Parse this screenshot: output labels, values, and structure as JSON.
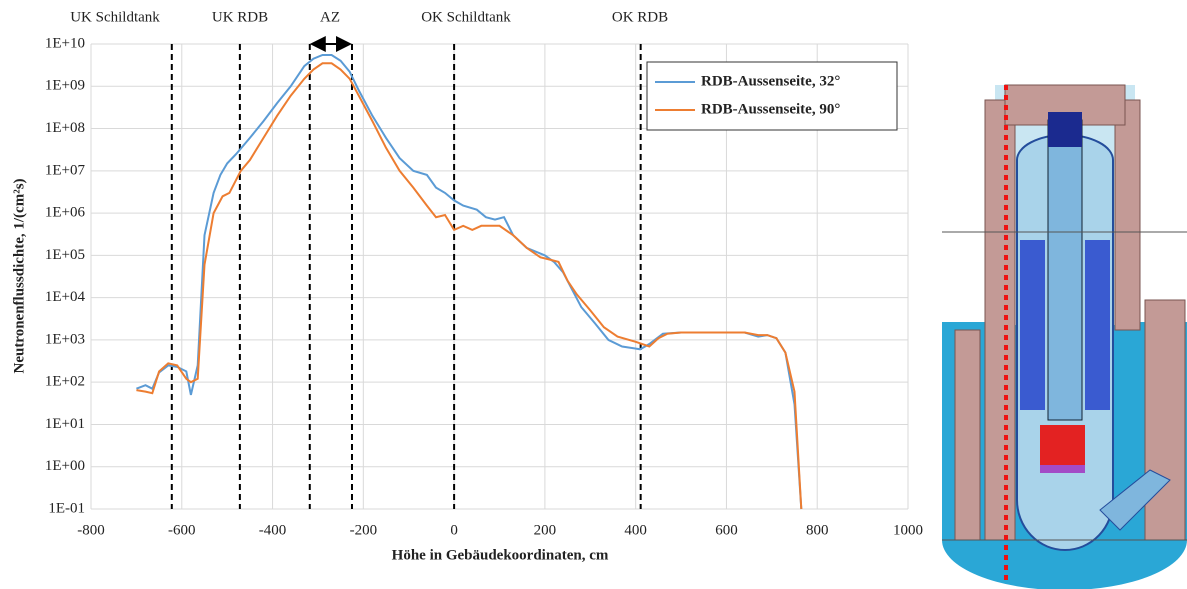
{
  "chart_data": {
    "type": "line",
    "annotations": [
      "UK Schildtank",
      "UK RDB",
      "AZ",
      "OK Schildtank",
      "OK RDB"
    ],
    "markers": [
      -622,
      -472,
      -318,
      -225,
      0,
      411
    ],
    "ylabel": "Neutronenflussdichte, 1/(cm²s)",
    "xlabel": "Höhe in Gebäudekoordinaten, cm",
    "yscale": "log",
    "grid": true,
    "legend": "upper right",
    "xlim": [
      -800,
      1000
    ],
    "xticks": [
      -800,
      -600,
      -400,
      -200,
      0,
      200,
      400,
      600,
      800,
      1000
    ],
    "ylim": [
      0.1,
      10000000000
    ],
    "yticks": [
      {
        "value": 0.1,
        "label": "1E-01"
      },
      {
        "value": 1,
        "label": "1E+00"
      },
      {
        "value": 10,
        "label": "1E+01"
      },
      {
        "value": 100,
        "label": "1E+02"
      },
      {
        "value": 1000,
        "label": "1E+03"
      },
      {
        "value": 10000,
        "label": "1E+04"
      },
      {
        "value": 100000,
        "label": "1E+05"
      },
      {
        "value": 1000000,
        "label": "1E+06"
      },
      {
        "value": 10000000,
        "label": "1E+07"
      },
      {
        "value": 100000000,
        "label": "1E+08"
      },
      {
        "value": 1000000000,
        "label": "1E+09"
      },
      {
        "value": 10000000000,
        "label": "1E+10"
      }
    ],
    "series": [
      {
        "name": "RDB-Aussenseite, 32°",
        "color": "#5b9bd5",
        "x": [
          -700,
          -680,
          -665,
          -650,
          -630,
          -610,
          -590,
          -580,
          -565,
          -550,
          -530,
          -515,
          -500,
          -480,
          -450,
          -420,
          -390,
          -360,
          -330,
          -310,
          -290,
          -270,
          -250,
          -230,
          -210,
          -180,
          -150,
          -120,
          -90,
          -60,
          -40,
          -20,
          0,
          20,
          50,
          70,
          90,
          110,
          130,
          160,
          200,
          220,
          240,
          280,
          310,
          340,
          370,
          410,
          430,
          460,
          500,
          550,
          600,
          640,
          670,
          690,
          710,
          730,
          750,
          765
        ],
        "values": [
          70,
          85,
          70,
          170,
          250,
          230,
          180,
          50,
          250,
          300000,
          3000000,
          8000000,
          15000000,
          25000000,
          60000000,
          150000000,
          400000000,
          1000000000,
          3000000000,
          4500000000,
          5500000000,
          5500000000,
          4000000000,
          2200000000,
          800000000,
          200000000,
          60000000,
          20000000,
          10000000,
          8000000,
          4000000,
          3000000,
          2000000,
          1500000,
          1200000,
          800000,
          700000,
          800000,
          300000,
          150000,
          100000,
          70000,
          40000,
          6000,
          2500,
          1000,
          700,
          600,
          800,
          1400,
          1500,
          1500,
          1500,
          1500,
          1200,
          1300,
          1100,
          500,
          30,
          0.1
        ]
      },
      {
        "name": "RDB-Aussenseite, 90°",
        "color": "#ed7d31",
        "x": [
          -700,
          -680,
          -665,
          -650,
          -630,
          -610,
          -590,
          -580,
          -565,
          -550,
          -530,
          -510,
          -495,
          -470,
          -450,
          -420,
          -390,
          -360,
          -330,
          -310,
          -290,
          -270,
          -250,
          -230,
          -210,
          -180,
          -150,
          -120,
          -90,
          -60,
          -40,
          -20,
          0,
          20,
          40,
          60,
          80,
          100,
          130,
          160,
          190,
          210,
          230,
          250,
          270,
          300,
          330,
          360,
          400,
          430,
          450,
          470,
          500,
          550,
          600,
          640,
          670,
          690,
          710,
          730,
          750,
          765
        ],
        "values": [
          65,
          60,
          55,
          180,
          280,
          250,
          120,
          100,
          120,
          60000,
          1000000,
          2500000,
          3000000,
          10000000,
          18000000,
          60000000,
          200000000,
          600000000,
          1500000000,
          2500000000,
          3500000000,
          3500000000,
          2500000000,
          1500000000,
          600000000,
          150000000,
          35000000,
          10000000,
          4000000,
          1500000,
          800000,
          900000,
          400000,
          500000,
          400000,
          500000,
          500000,
          500000,
          300000,
          150000,
          90000,
          80000,
          70000,
          25000,
          12000,
          5000,
          2000,
          1200,
          900,
          700,
          1100,
          1400,
          1500,
          1500,
          1500,
          1500,
          1300,
          1300,
          1100,
          500,
          60,
          0.1
        ]
      }
    ]
  }
}
